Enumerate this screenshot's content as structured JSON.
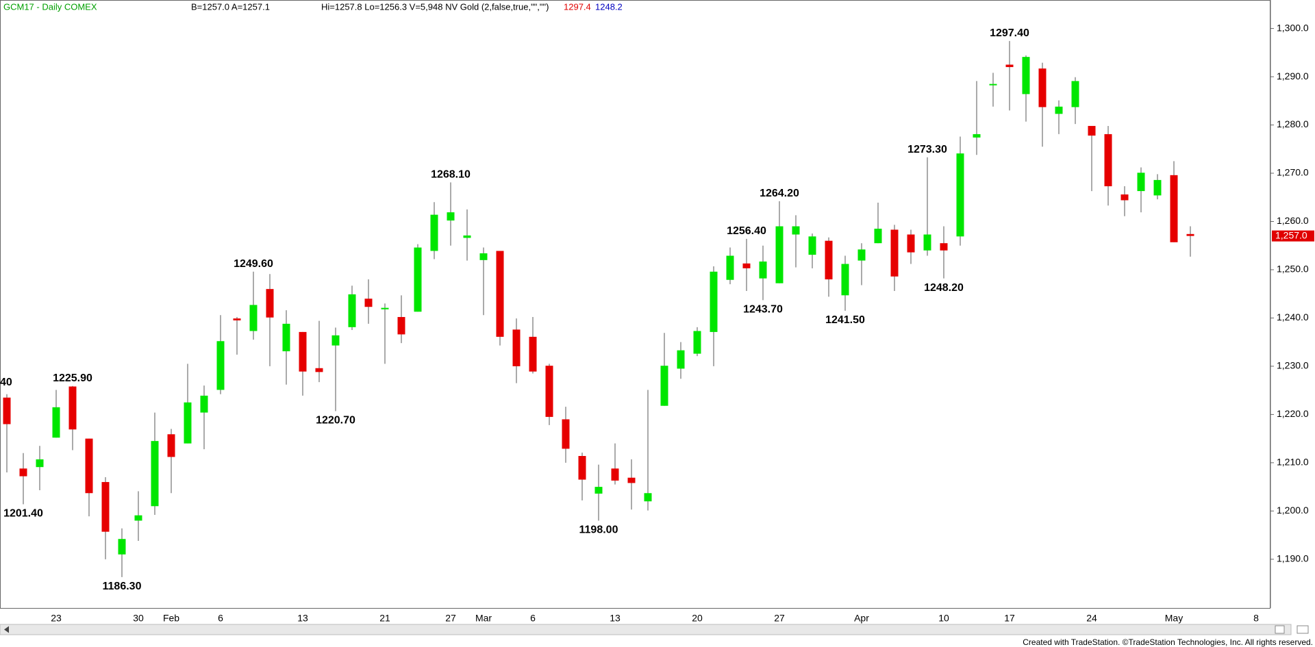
{
  "chart_data": {
    "type": "candlestick",
    "header": {
      "symbol": "GCM17 - Daily  COMEX",
      "quote": "B=1257.0  A=1257.1",
      "stats": "Hi=1257.8  Lo=1256.3  V=5,948  NV Gold (2,false,true,\"\",\"\")",
      "indicator_1": "1297.4",
      "indicator_2": "1248.2"
    },
    "footer": "Created with TradeStation. ©TradeStation Technologies, Inc. All rights reserved.",
    "up_color": "#00e600",
    "down_color": "#e60000",
    "categories": [
      null,
      null,
      null,
      "23",
      null,
      null,
      null,
      null,
      "30",
      null,
      "Feb",
      null,
      null,
      "6",
      null,
      null,
      null,
      null,
      "13",
      null,
      null,
      null,
      null,
      "21",
      null,
      null,
      null,
      "27",
      null,
      "Mar",
      null,
      null,
      "6",
      null,
      null,
      null,
      null,
      "13",
      null,
      null,
      null,
      null,
      "20",
      null,
      null,
      null,
      null,
      "27",
      null,
      null,
      null,
      null,
      "Apr",
      null,
      null,
      null,
      null,
      "10",
      null,
      null,
      null,
      "17",
      null,
      null,
      null,
      null,
      "24",
      null,
      null,
      null,
      null,
      "May",
      null,
      null,
      null,
      null,
      "8"
    ],
    "open": [
      1223.5,
      1208.8,
      1209.1,
      1215.2,
      1225.8,
      1215.0,
      1206.0,
      1191.0,
      1198.0,
      1201.0,
      1215.9,
      1214.0,
      1220.4,
      1225.1,
      1239.9,
      1237.3,
      1246.0,
      1233.1,
      1237.1,
      1229.6,
      1234.3,
      1238.1,
      1244.0,
      1241.8,
      1240.2,
      1241.3,
      1253.9,
      1260.2,
      1256.6,
      1252.0,
      1253.9,
      1237.6,
      1236.1,
      1230.1,
      1219.0,
      1211.4,
      1203.6,
      1208.8,
      1206.9,
      1202.0,
      1221.8,
      1229.5,
      1232.6,
      1237.1,
      1247.9,
      1251.3,
      1248.2,
      1247.2,
      1257.3,
      1253.1,
      1256.0,
      1244.7,
      1251.9,
      1255.5,
      1258.3,
      1257.3,
      1254.0,
      1255.5,
      1256.9,
      1277.4,
      1288.4,
      1292.5,
      1286.4,
      1291.7,
      1282.3,
      1283.7,
      1279.8,
      1278.1,
      1265.6,
      1266.3,
      1265.4,
      1269.6,
      1257.4,
      null,
      null,
      null,
      null
    ],
    "high": [
      1224.2,
      1212.0,
      1213.5,
      1225.1,
      1225.9,
      1215.0,
      1207.0,
      1196.4,
      1204.1,
      1220.4,
      1217.0,
      1230.5,
      1226.0,
      1240.6,
      1240.2,
      1249.6,
      1249.1,
      1241.6,
      1237.1,
      1239.4,
      1238.0,
      1246.7,
      1248.0,
      1243.0,
      1244.7,
      1255.3,
      1264.0,
      1268.1,
      1262.5,
      1254.6,
      1253.9,
      1239.9,
      1240.2,
      1230.5,
      1221.6,
      1212.1,
      1209.6,
      1214.0,
      1210.7,
      1225.1,
      1236.9,
      1235.0,
      1238.1,
      1250.7,
      1254.6,
      1256.4,
      1255.0,
      1264.2,
      1261.3,
      1257.5,
      1256.7,
      1252.9,
      1255.5,
      1263.9,
      1259.3,
      1258.3,
      1273.3,
      1259.0,
      1277.6,
      1289.1,
      1290.8,
      1297.4,
      1294.4,
      1292.9,
      1285.1,
      1289.9,
      1279.8,
      1279.8,
      1267.3,
      1271.2,
      1269.8,
      1272.5,
      1259.0,
      null,
      null,
      null,
      null
    ],
    "low": [
      1208.0,
      1201.4,
      1204.3,
      1215.2,
      1212.6,
      1198.9,
      1190.0,
      1186.3,
      1193.8,
      1199.2,
      1203.7,
      1214.0,
      1212.8,
      1224.2,
      1232.4,
      1235.5,
      1230.0,
      1226.2,
      1223.9,
      1226.7,
      1220.7,
      1237.5,
      1238.8,
      1230.5,
      1234.8,
      1241.3,
      1252.2,
      1255.0,
      1251.9,
      1240.6,
      1234.3,
      1226.5,
      1228.5,
      1217.8,
      1210.0,
      1202.2,
      1198.0,
      1205.5,
      1200.3,
      1200.1,
      1221.8,
      1227.4,
      1232.1,
      1230.0,
      1247.0,
      1245.6,
      1243.7,
      1247.2,
      1250.5,
      1250.3,
      1244.4,
      1241.5,
      1246.8,
      1255.5,
      1245.6,
      1251.2,
      1252.9,
      1248.2,
      1255.0,
      1273.8,
      1283.8,
      1283.0,
      1280.7,
      1275.5,
      1278.1,
      1280.2,
      1266.3,
      1263.3,
      1261.1,
      1261.9,
      1264.6,
      1255.7,
      1252.7,
      null,
      null,
      null,
      null
    ],
    "close": [
      1218.0,
      1207.2,
      1210.7,
      1221.5,
      1216.9,
      1203.7,
      1195.7,
      1194.2,
      1199.1,
      1214.5,
      1211.2,
      1222.5,
      1223.9,
      1235.2,
      1239.5,
      1242.7,
      1240.1,
      1238.8,
      1228.9,
      1228.8,
      1236.4,
      1244.9,
      1242.3,
      1242.1,
      1236.6,
      1254.6,
      1261.4,
      1261.9,
      1257.1,
      1253.4,
      1236.1,
      1230.0,
      1228.9,
      1219.5,
      1212.9,
      1206.5,
      1205.0,
      1206.3,
      1205.8,
      1203.7,
      1230.1,
      1233.3,
      1237.3,
      1249.6,
      1252.9,
      1250.3,
      1251.7,
      1259.0,
      1259.0,
      1256.9,
      1248.0,
      1251.2,
      1254.2,
      1258.5,
      1248.6,
      1253.6,
      1257.3,
      1254.0,
      1274.1,
      1278.1,
      1288.5,
      1292.0,
      1294.1,
      1283.7,
      1283.8,
      1289.1,
      1277.8,
      1267.3,
      1264.4,
      1270.1,
      1268.6,
      1255.7,
      1257.0,
      null,
      null,
      null,
      null
    ],
    "annotations": [
      "40",
      "1201.40",
      "1225.90",
      "1186.30",
      "1249.60",
      "1220.70",
      "1268.10",
      "1198.00",
      "1256.40",
      "1243.70",
      "1264.20",
      "1241.50",
      "1273.30",
      "1248.20",
      "1297.40"
    ],
    "last_price": {
      "value": 1257.0,
      "label": "1,257.0"
    },
    "ylim": [
      1179.9,
      1305.9
    ],
    "yticks": [
      {
        "value": 1190,
        "label": "1,190.0"
      },
      {
        "value": 1200,
        "label": "1,200.0"
      },
      {
        "value": 1210,
        "label": "1,210.0"
      },
      {
        "value": 1220,
        "label": "1,220.0"
      },
      {
        "value": 1230,
        "label": "1,230.0"
      },
      {
        "value": 1240,
        "label": "1,240.0"
      },
      {
        "value": 1250,
        "label": "1,250.0"
      },
      {
        "value": 1260,
        "label": "1,260.0"
      },
      {
        "value": 1270,
        "label": "1,270.0"
      },
      {
        "value": 1280,
        "label": "1,280.0"
      },
      {
        "value": 1290,
        "label": "1,290.0"
      },
      {
        "value": 1300,
        "label": "1,300.0"
      }
    ],
    "grid": false
  }
}
